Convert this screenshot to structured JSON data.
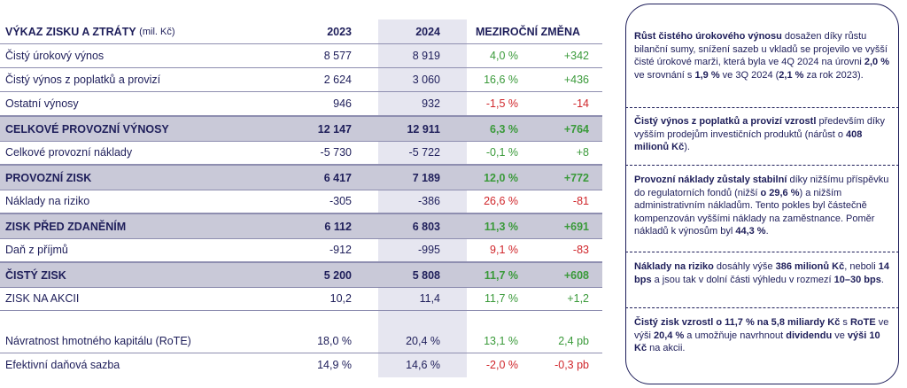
{
  "table": {
    "header": {
      "title": "VÝKAZ ZISKU A ZTRÁTY",
      "unit": "(mil. Kč)",
      "col_2023": "2023",
      "col_2024": "2024",
      "col_change": "MEZIROČNÍ ZMĚNA"
    },
    "rows": [
      {
        "label": "Čistý úrokový výnos",
        "v2023": "8 577",
        "v2024": "8 919",
        "pct": "4,0 %",
        "abs": "+342"
      },
      {
        "label": "Čistý výnos z poplatků a provizí",
        "v2023": "2 624",
        "v2024": "3 060",
        "pct": "16,6 %",
        "abs": "+436"
      },
      {
        "label": "Ostatní výnosy",
        "v2023": "946",
        "v2024": "932",
        "pct": "-1,5 %",
        "abs": "-14"
      },
      {
        "label": "CELKOVÉ PROVOZNÍ VÝNOSY",
        "v2023": "12 147",
        "v2024": "12 911",
        "pct": "6,3 %",
        "abs": "+764"
      },
      {
        "label": "Celkové provozní náklady",
        "v2023": "-5 730",
        "v2024": "-5 722",
        "pct": "-0,1 %",
        "abs": "+8"
      },
      {
        "label": "PROVOZNÍ ZISK",
        "v2023": "6 417",
        "v2024": "7 189",
        "pct": "12,0 %",
        "abs": "+772"
      },
      {
        "label": "Náklady na riziko",
        "v2023": "-305",
        "v2024": "-386",
        "pct": "26,6 %",
        "abs": "-81"
      },
      {
        "label": "ZISK PŘED ZDANĚNÍM",
        "v2023": "6 112",
        "v2024": "6 803",
        "pct": "11,3 %",
        "abs": "+691"
      },
      {
        "label": "Daň z příjmů",
        "v2023": "-912",
        "v2024": "-995",
        "pct": "9,1 %",
        "abs": "-83"
      },
      {
        "label": "ČISTÝ ZISK",
        "v2023": "5 200",
        "v2024": "5 808",
        "pct": "11,7 %",
        "abs": "+608"
      },
      {
        "label": "ZISK NA AKCII",
        "v2023": "10,2",
        "v2024": "11,4",
        "pct": "11,7 %",
        "abs": "+1,2"
      },
      {
        "label": "Návratnost hmotného kapitálu (RoTE)",
        "v2023": "18,0 %",
        "v2024": "20,4 %",
        "pct": "13,1 %",
        "abs": "2,4 pb"
      },
      {
        "label": "Efektivní daňová sazba",
        "v2023": "14,9 %",
        "v2024": "14,6 %",
        "pct": "-2,0 %",
        "abs": "-0,3 pb"
      }
    ]
  },
  "notes": [
    {
      "b1": "Růst čistého úrokového výnosu",
      "t1": " dosažen díky růstu bilanční sumy, snížení sazeb u vkladů se projevilo ve vyšší čisté úrokové marži, která byla ve 4Q 2024 na úrovni ",
      "b2": "2,0 %",
      "t2": " ve srovnání s ",
      "b3": "1,9 %",
      "t3": " ve 3Q 2024 (",
      "b4": "2,1 %",
      "t4": " za rok 2023)."
    },
    {
      "b1": "Čistý výnos z poplatků a provizí vzrostl",
      "t1": " především díky vyšším prodejům investičních produktů (nárůst o ",
      "b2": "408 milionů Kč",
      "t2": ")."
    },
    {
      "b1": "Provozní náklady zůstaly stabilní",
      "t1": " díky nižšímu příspěvku do regulatorních fondů (nižší ",
      "b2": "o 29,6 %",
      "t2": ") a nižším administrativním nákladům. Tento pokles byl částečně kompenzován vyššími náklady na zaměstnance. Poměr nákladů k výnosům byl ",
      "b3": "44,3 %",
      "t3": "."
    },
    {
      "b1": "Náklady na riziko",
      "t1": " dosáhly výše ",
      "b2": "386 milionů Kč",
      "t2": ", neboli ",
      "b3": "14 bps",
      "t3": " a jsou tak v dolní části výhledu v rozmezí ",
      "b4": "10–30 bps",
      "t4": "."
    },
    {
      "b1": "Čistý zisk vzrostl o 11,7 % na 5,8 miliardy Kč",
      "t1": " s ",
      "b2": "RoTE",
      "t2": " ve výši ",
      "b3": "20,4 %",
      "t3": " a umožňuje navrhnout ",
      "b4": "dividendu",
      "t4": " ve ",
      "b5": "výši 10 Kč",
      "t5": " na akcii."
    }
  ],
  "colors": {
    "text": "#1e1e5a",
    "positive": "#3a9a3a",
    "negative": "#d0262b",
    "highlight": "#c9c9d8",
    "shade": "#e6e6f0"
  }
}
